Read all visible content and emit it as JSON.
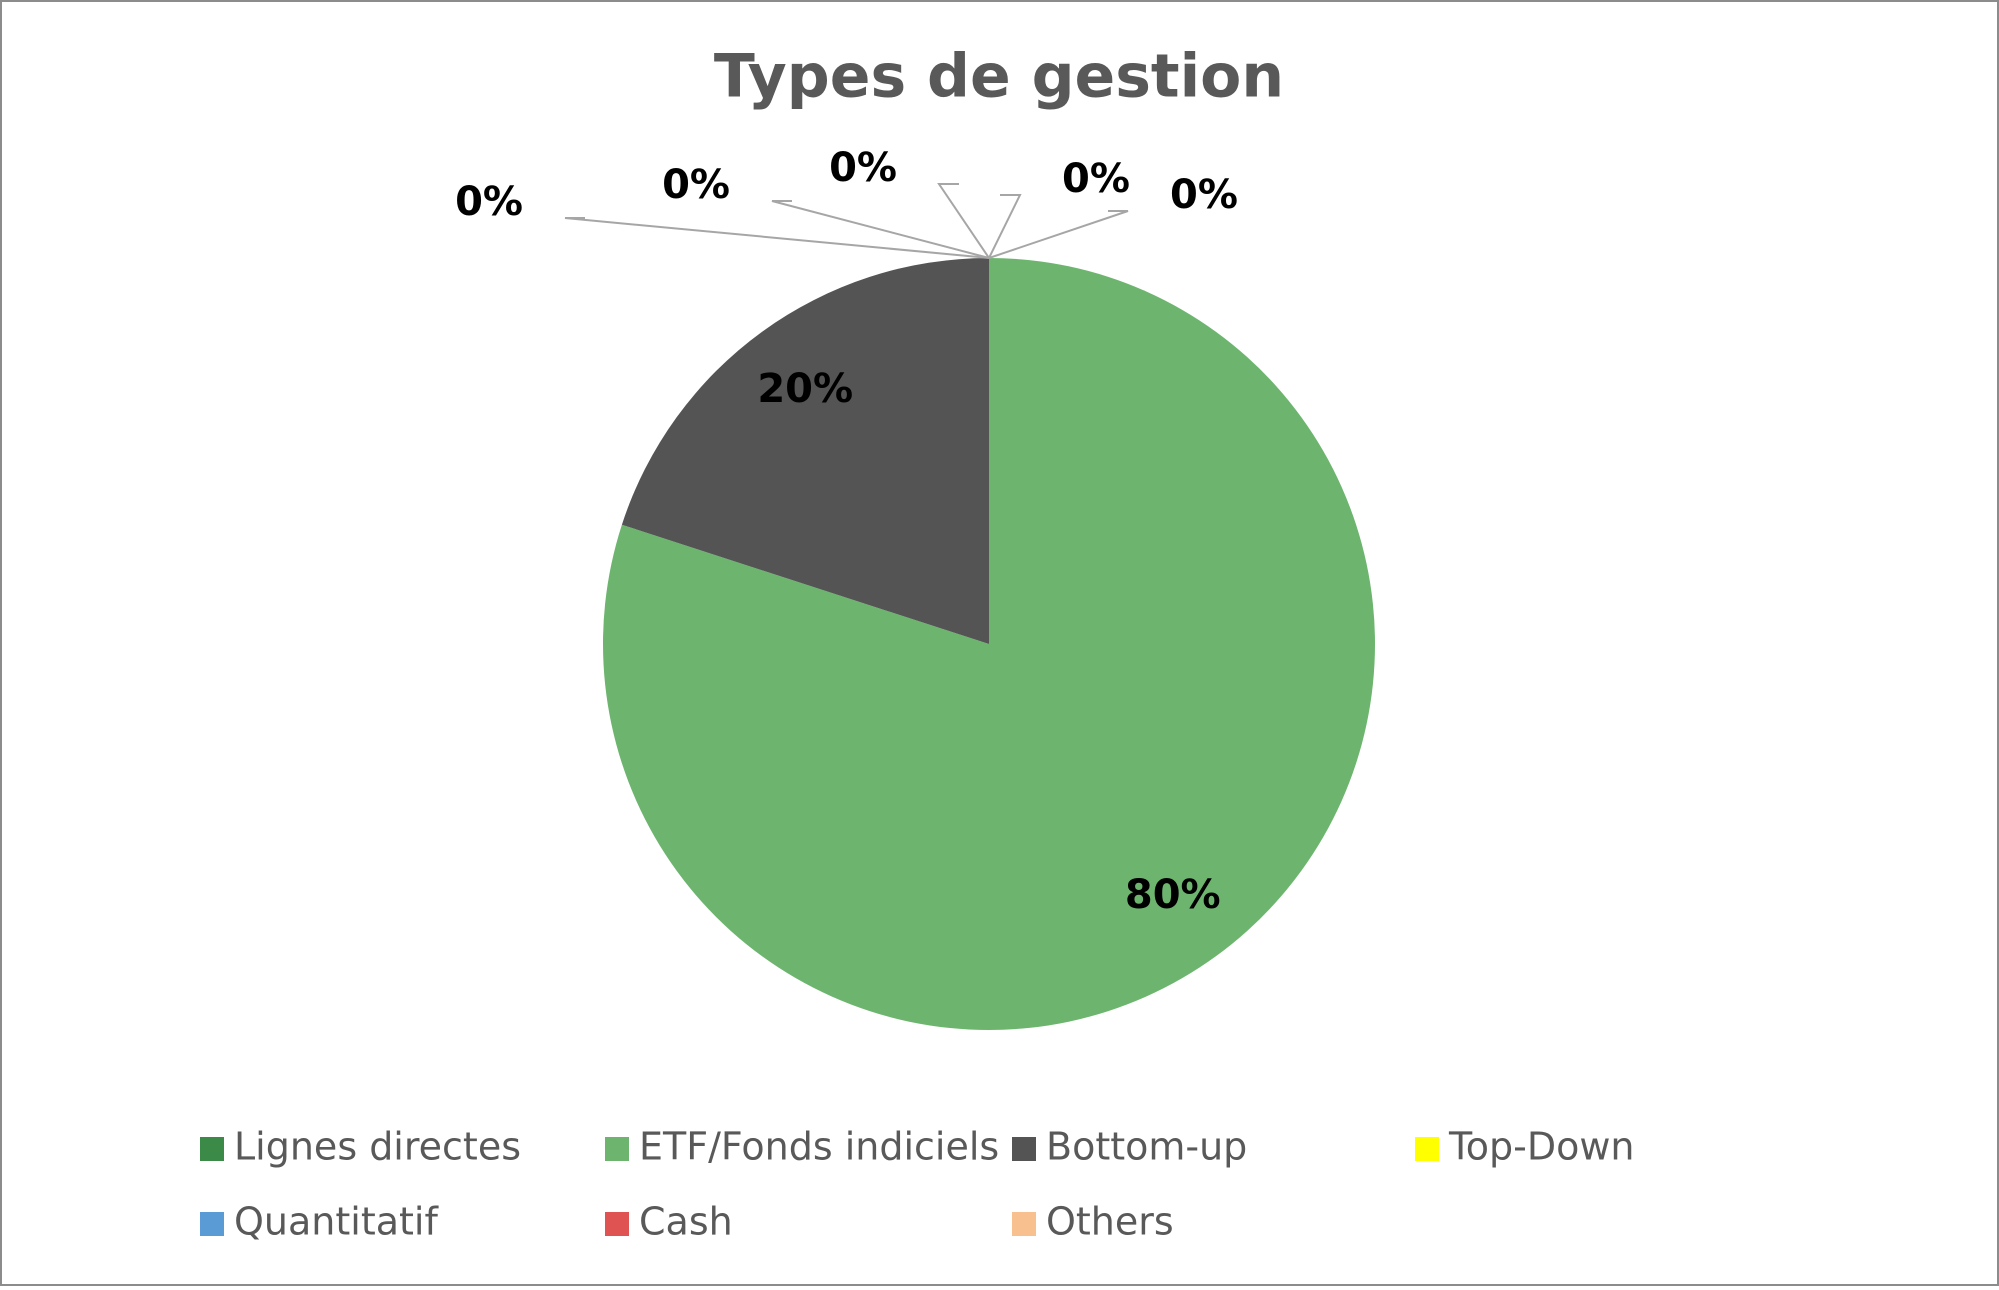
{
  "chart_data": {
    "type": "pie",
    "title": "Types de gestion",
    "categories": [
      "Lignes directes",
      "ETF/Fonds indiciels",
      "Bottom-up",
      "Top-Down",
      "Quantitatif",
      "Cash",
      "Others"
    ],
    "values": [
      0,
      80,
      20,
      0,
      0,
      0,
      0
    ],
    "value_labels": [
      "0%",
      "80%",
      "20%",
      "0%",
      "0%",
      "0%",
      "0%"
    ],
    "colors": [
      "#3b8a48",
      "#6db56f",
      "#545454",
      "#ffff00",
      "#5b9bd5",
      "#e05353",
      "#f9c08f"
    ],
    "legend": "bottom"
  }
}
